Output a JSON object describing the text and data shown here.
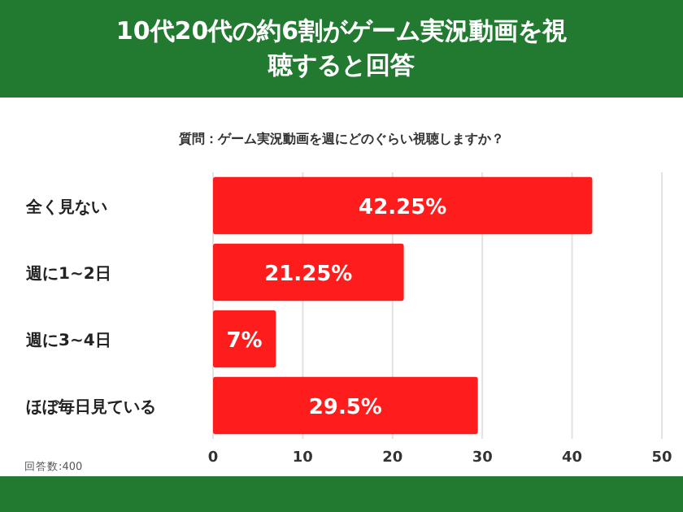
{
  "chart_data": {
    "type": "bar",
    "orientation": "horizontal",
    "title": "10代20代の約6割がゲーム実況動画を視聴すると回答",
    "subtitle": "質問：ゲーム実況動画を週にどのぐらい視聴しますか？",
    "categories": [
      "全く見ない",
      "週に1~2日",
      "週に3~4日",
      "ほぼ毎日見ている"
    ],
    "values": [
      42.25,
      21.25,
      7,
      29.5
    ],
    "color": "#fe1c1c",
    "value_labels": [
      "42.25%",
      "21.25%",
      "7%",
      "29.5%"
    ],
    "xlim": [
      0,
      50
    ],
    "xticks": [
      0,
      10,
      20,
      30,
      40,
      50
    ],
    "grid": "x",
    "annotations": [
      "回答数:400"
    ]
  }
}
